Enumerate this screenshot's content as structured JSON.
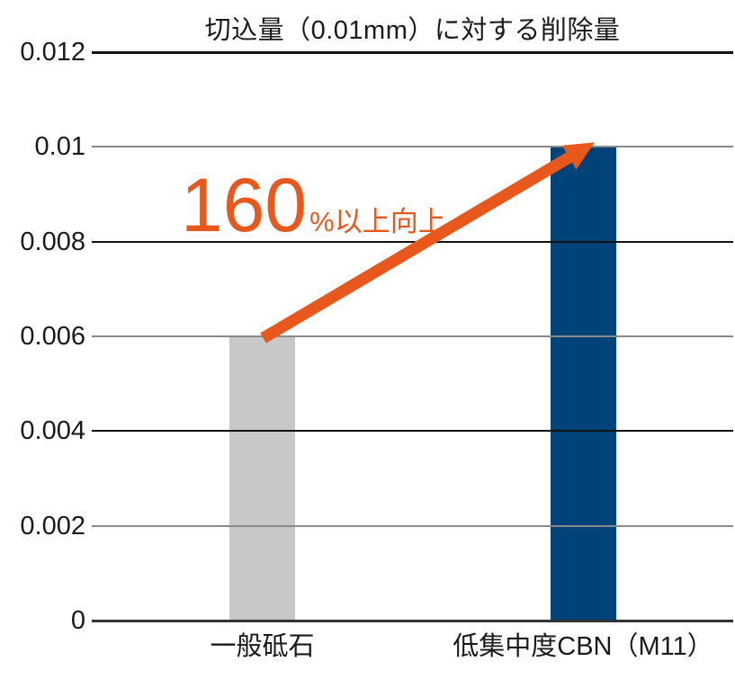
{
  "title": "切込量（0.01mm）に対する削除量",
  "chart_data": {
    "type": "bar",
    "title": "切込量（0.01mm）に対する削除量",
    "categories": [
      "一般砥石",
      "低集中度CBN（M11）"
    ],
    "values": [
      0.006,
      0.01
    ],
    "bar_colors": [
      "#C7C8CA",
      "#004379"
    ],
    "xlabel": "",
    "ylabel": "",
    "ylim": [
      0,
      0.012
    ],
    "yticks": [
      {
        "label": "0",
        "value": 0,
        "line": "axis"
      },
      {
        "label": "0.002",
        "value": 0.002,
        "line": "gray"
      },
      {
        "label": "0.004",
        "value": 0.004,
        "line": "dark"
      },
      {
        "label": "0.006",
        "value": 0.006,
        "line": "gray"
      },
      {
        "label": "0.008",
        "value": 0.008,
        "line": "dark"
      },
      {
        "label": "0.01",
        "value": 0.01,
        "line": "gray"
      },
      {
        "label": "0.012",
        "value": 0.012,
        "line": "dark"
      }
    ],
    "grid": true,
    "legend": false,
    "annotation": {
      "big_text": "160",
      "small_text": "%以上向上",
      "arrow_from_value": 0.006,
      "arrow_to_value": 0.01
    }
  },
  "colors": {
    "background": "#ffffff",
    "text": "#1a1a1a",
    "bar_general": "#C7C8CA",
    "bar_cbn": "#004379",
    "arrow_orange": "#E8581C",
    "grid_gray": "#898989",
    "grid_dark": "#111111",
    "axis_dark": "#333333"
  }
}
